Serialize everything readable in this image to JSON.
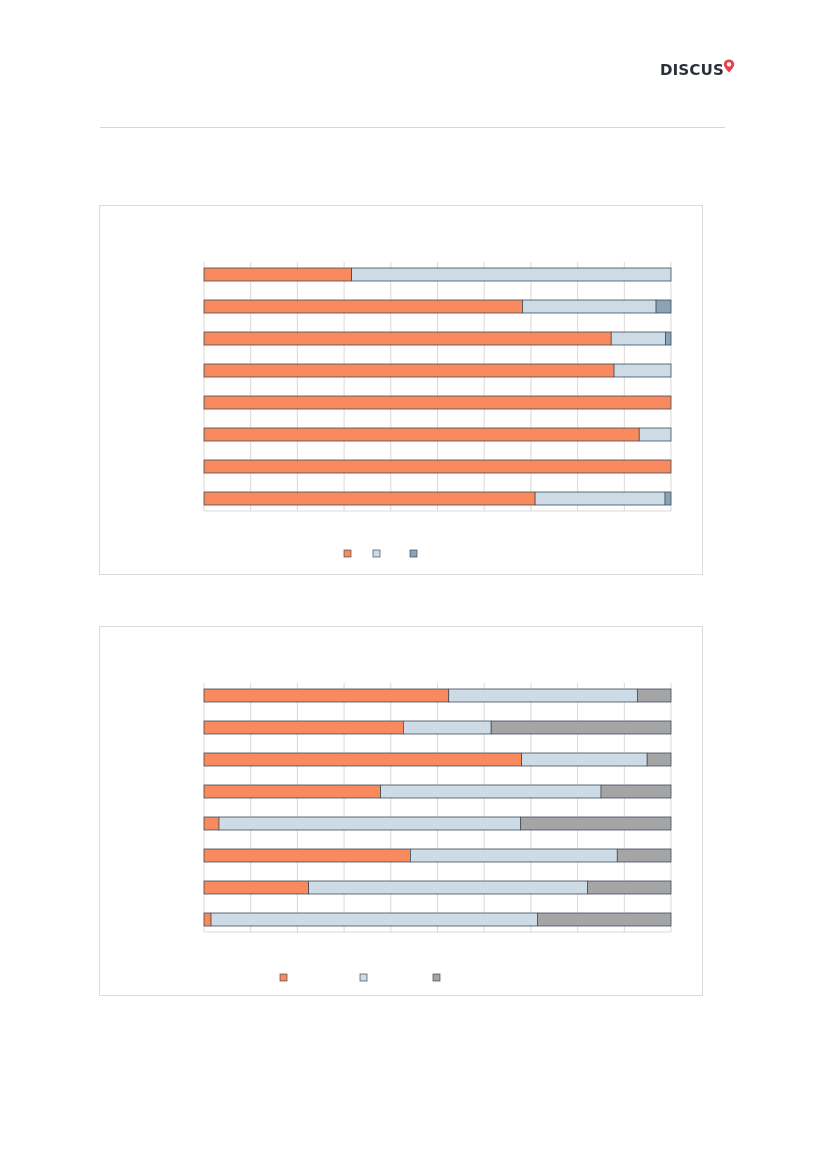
{
  "brand": {
    "name": "DISCUS",
    "accent_color": "#e8404a",
    "text_color": "#2b2f3a",
    "icon": "location-pin-icon"
  },
  "chart_data": [
    {
      "type": "bar",
      "orientation": "horizontal",
      "stacked": true,
      "percent": true,
      "xlim": [
        0,
        1
      ],
      "grid": true,
      "legend_position": "bottom",
      "categories": [
        "",
        "",
        "",
        "",
        "",
        "",
        "",
        ""
      ],
      "series": [
        {
          "color": "#f98a5e",
          "values": [
            0.316,
            0.682,
            0.872,
            0.878,
            1.0,
            0.932,
            1.0,
            0.709
          ]
        },
        {
          "color": "#cddbe6",
          "values": [
            0.684,
            0.286,
            0.116,
            0.122,
            0.0,
            0.068,
            0.0,
            0.278
          ]
        },
        {
          "color": "#8aa3b5",
          "values": [
            0.0,
            0.032,
            0.012,
            0.0,
            0.0,
            0.0,
            0.0,
            0.013
          ]
        }
      ]
    },
    {
      "type": "bar",
      "orientation": "horizontal",
      "stacked": true,
      "percent": true,
      "xlim": [
        0,
        1
      ],
      "grid": true,
      "legend_position": "bottom",
      "categories": [
        "",
        "",
        "",
        "",
        "",
        "",
        "",
        ""
      ],
      "series": [
        {
          "color": "#f98a5e",
          "values": [
            0.524,
            0.427,
            0.68,
            0.378,
            0.032,
            0.442,
            0.224,
            0.015
          ]
        },
        {
          "color": "#cddbe6",
          "values": [
            0.404,
            0.188,
            0.269,
            0.472,
            0.646,
            0.443,
            0.597,
            0.699
          ]
        },
        {
          "color": "#a5a5a5",
          "values": [
            0.072,
            0.385,
            0.051,
            0.15,
            0.322,
            0.115,
            0.179,
            0.286
          ]
        }
      ]
    }
  ]
}
